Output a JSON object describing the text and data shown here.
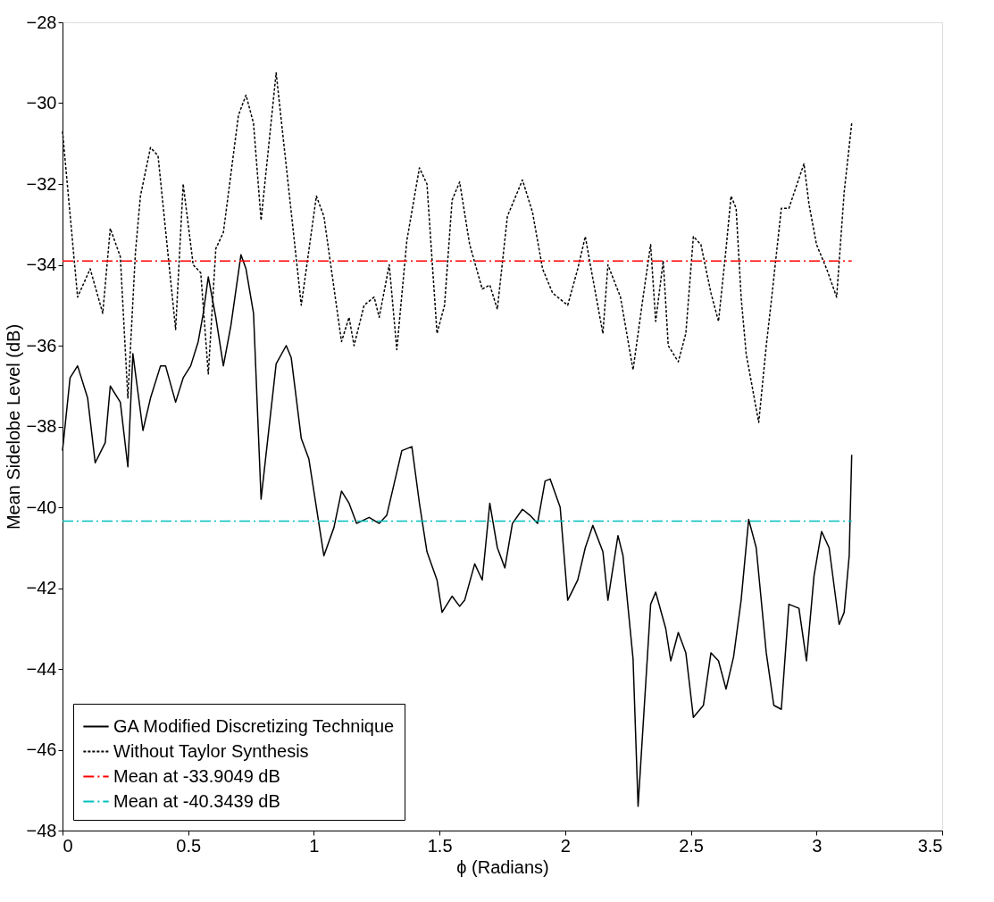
{
  "chart_data": {
    "type": "line",
    "xlabel": "ϕ (Radians)",
    "ylabel": "Mean Sidelobe Level (dB)",
    "xlim": [
      0,
      3.5
    ],
    "xticks": [
      0,
      0.5,
      1,
      1.5,
      2,
      2.5,
      3,
      3.5
    ],
    "ylim": [
      -48,
      -28
    ],
    "yticks": [
      -48,
      -46,
      -44,
      -42,
      -40,
      -38,
      -36,
      -34,
      -32,
      -30,
      -28
    ],
    "grid": false,
    "legend": "bottom left",
    "marker": "none",
    "series": [
      {
        "name": "GA Modified Discretizing Technique",
        "color": "#000000",
        "line_style": "solid",
        "x": [
          0,
          0.03,
          0.06,
          0.1,
          0.13,
          0.17,
          0.19,
          0.23,
          0.26,
          0.28,
          0.32,
          0.35,
          0.39,
          0.41,
          0.45,
          0.48,
          0.51,
          0.54,
          0.56,
          0.58,
          0.61,
          0.64,
          0.67,
          0.71,
          0.73,
          0.76,
          0.79,
          0.85,
          0.89,
          0.91,
          0.95,
          0.98,
          1.04,
          1.08,
          1.11,
          1.14,
          1.17,
          1.22,
          1.26,
          1.29,
          1.35,
          1.39,
          1.42,
          1.45,
          1.49,
          1.51,
          1.55,
          1.58,
          1.6,
          1.64,
          1.67,
          1.7,
          1.73,
          1.76,
          1.79,
          1.83,
          1.86,
          1.89,
          1.92,
          1.94,
          1.98,
          2.01,
          2.05,
          2.08,
          2.11,
          2.15,
          2.17,
          2.21,
          2.23,
          2.27,
          2.29,
          2.34,
          2.36,
          2.4,
          2.42,
          2.45,
          2.48,
          2.51,
          2.55,
          2.58,
          2.61,
          2.64,
          2.67,
          2.7,
          2.73,
          2.76,
          2.8,
          2.83,
          2.86,
          2.89,
          2.93,
          2.96,
          2.99,
          3.02,
          3.05,
          3.09,
          3.11,
          3.13,
          3.14
        ],
        "values": [
          -38.6,
          -36.8,
          -36.5,
          -37.3,
          -38.9,
          -38.4,
          -37.0,
          -37.4,
          -39.0,
          -36.2,
          -38.1,
          -37.3,
          -36.5,
          -36.5,
          -37.4,
          -36.8,
          -36.5,
          -35.9,
          -35.2,
          -34.3,
          -35.3,
          -36.5,
          -35.5,
          -33.75,
          -34.1,
          -35.2,
          -39.8,
          -36.45,
          -36.0,
          -36.3,
          -38.3,
          -38.8,
          -41.2,
          -40.5,
          -39.6,
          -39.9,
          -40.4,
          -40.25,
          -40.4,
          -40.2,
          -38.6,
          -38.5,
          -39.9,
          -41.1,
          -41.8,
          -42.6,
          -42.2,
          -42.45,
          -42.3,
          -41.4,
          -41.8,
          -39.9,
          -41.0,
          -41.5,
          -40.4,
          -40.05,
          -40.2,
          -40.4,
          -39.35,
          -39.3,
          -40.0,
          -42.3,
          -41.8,
          -41.0,
          -40.45,
          -41.1,
          -42.3,
          -40.7,
          -41.2,
          -43.75,
          -47.4,
          -42.4,
          -42.1,
          -43.0,
          -43.8,
          -43.1,
          -43.6,
          -45.2,
          -44.9,
          -43.6,
          -43.8,
          -44.5,
          -43.7,
          -42.3,
          -40.3,
          -41.0,
          -43.6,
          -44.9,
          -45.0,
          -42.4,
          -42.5,
          -43.8,
          -41.7,
          -40.6,
          -41.0,
          -42.9,
          -42.6,
          -41.2,
          -38.7
        ]
      },
      {
        "name": "Without Taylor Synthesis",
        "color": "#000000",
        "line_style": "dotted",
        "x": [
          0,
          0.06,
          0.11,
          0.16,
          0.19,
          0.23,
          0.26,
          0.29,
          0.31,
          0.35,
          0.38,
          0.45,
          0.48,
          0.52,
          0.55,
          0.58,
          0.61,
          0.64,
          0.7,
          0.73,
          0.76,
          0.79,
          0.85,
          0.95,
          1.01,
          1.04,
          1.11,
          1.14,
          1.16,
          1.2,
          1.24,
          1.26,
          1.3,
          1.33,
          1.37,
          1.42,
          1.45,
          1.49,
          1.52,
          1.55,
          1.58,
          1.62,
          1.67,
          1.7,
          1.73,
          1.77,
          1.83,
          1.87,
          1.91,
          1.95,
          2.01,
          2.05,
          2.08,
          2.1,
          2.15,
          2.17,
          2.22,
          2.27,
          2.31,
          2.34,
          2.36,
          2.39,
          2.41,
          2.45,
          2.48,
          2.51,
          2.54,
          2.58,
          2.61,
          2.64,
          2.66,
          2.68,
          2.7,
          2.72,
          2.77,
          2.8,
          2.82,
          2.86,
          2.89,
          2.95,
          2.97,
          3.0,
          3.04,
          3.08,
          3.11,
          3.14
        ],
        "values": [
          -30.7,
          -34.8,
          -34.1,
          -35.2,
          -33.1,
          -33.8,
          -37.3,
          -33.7,
          -32.3,
          -31.1,
          -31.3,
          -35.6,
          -32.0,
          -34.0,
          -34.2,
          -36.7,
          -33.6,
          -33.2,
          -30.3,
          -29.8,
          -30.5,
          -32.9,
          -29.25,
          -35.0,
          -32.3,
          -32.8,
          -35.9,
          -35.3,
          -36.0,
          -35.0,
          -34.8,
          -35.3,
          -34.0,
          -36.1,
          -33.4,
          -31.6,
          -32.0,
          -35.7,
          -35.0,
          -32.4,
          -31.95,
          -33.5,
          -34.6,
          -34.5,
          -35.1,
          -32.8,
          -31.9,
          -32.7,
          -34.1,
          -34.7,
          -35.0,
          -34.1,
          -33.3,
          -34.0,
          -35.7,
          -34.0,
          -34.8,
          -36.6,
          -34.8,
          -33.5,
          -35.4,
          -33.9,
          -36.0,
          -36.4,
          -35.7,
          -33.3,
          -33.5,
          -34.7,
          -35.4,
          -33.6,
          -32.3,
          -32.6,
          -34.8,
          -36.2,
          -37.9,
          -36.0,
          -34.9,
          -32.6,
          -32.6,
          -31.5,
          -32.5,
          -33.5,
          -34.1,
          -34.8,
          -32.2,
          -30.5
        ]
      },
      {
        "name": "Mean at -33.9049 dB",
        "color": "#ff0000",
        "line_style": "dashed",
        "x": [
          0,
          3.14
        ],
        "values": [
          -33.9049,
          -33.9049
        ]
      },
      {
        "name": "Mean at -40.3439 dB",
        "color": "#00bfbf",
        "line_style": "dashed",
        "x": [
          0,
          3.14
        ],
        "values": [
          -40.3439,
          -40.3439
        ]
      }
    ]
  }
}
